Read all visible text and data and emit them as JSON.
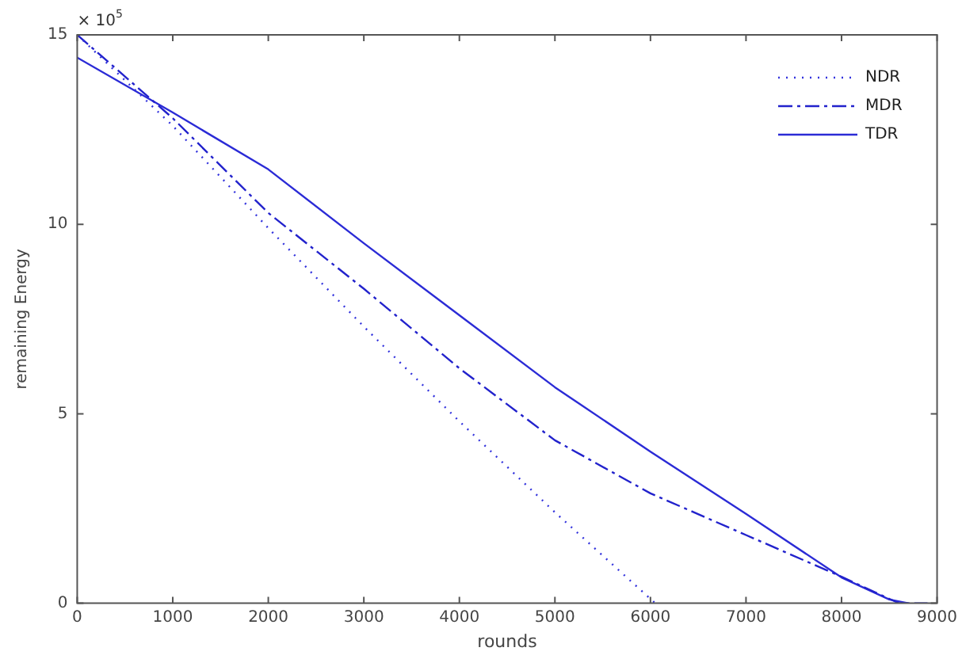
{
  "chart_data": {
    "type": "line",
    "xlabel": "rounds",
    "ylabel": "remaining Energy",
    "annotations": [
      "× 10$^{5}$"
    ],
    "xlim": [
      0,
      9000
    ],
    "xticks": [
      0,
      1000,
      2000,
      3000,
      4000,
      5000,
      6000,
      7000,
      8000,
      9000
    ],
    "ylim": [
      0,
      15
    ],
    "yticks": [
      0,
      5,
      10,
      15
    ],
    "grid": false,
    "legend": "top right",
    "marker": "none",
    "series": [
      {
        "name": "NDR",
        "color": "#3333dd",
        "line_style": "dotted",
        "x": [
          0,
          1000,
          2000,
          3000,
          4000,
          5000,
          6050
        ],
        "values": [
          15,
          12.6,
          9.9,
          7.3,
          4.8,
          2.4,
          0
        ]
      },
      {
        "name": "MDR",
        "color": "#2222cc",
        "line_style": "dashed",
        "x": [
          0,
          1000,
          2000,
          3000,
          4000,
          5000,
          6000,
          7000,
          8000,
          8600,
          8900
        ],
        "values": [
          15,
          12.8,
          10.3,
          8.3,
          6.2,
          4.3,
          2.9,
          1.8,
          0.7,
          0,
          0
        ]
      },
      {
        "name": "TDR",
        "color": "#2b2bd6",
        "line_style": "solid",
        "x": [
          0,
          1000,
          2000,
          3000,
          4000,
          5000,
          6000,
          7000,
          8000,
          8500,
          8700
        ],
        "values": [
          14.4,
          12.95,
          11.45,
          9.5,
          7.6,
          5.7,
          4.0,
          2.36,
          0.68,
          0.1,
          0
        ]
      }
    ]
  }
}
